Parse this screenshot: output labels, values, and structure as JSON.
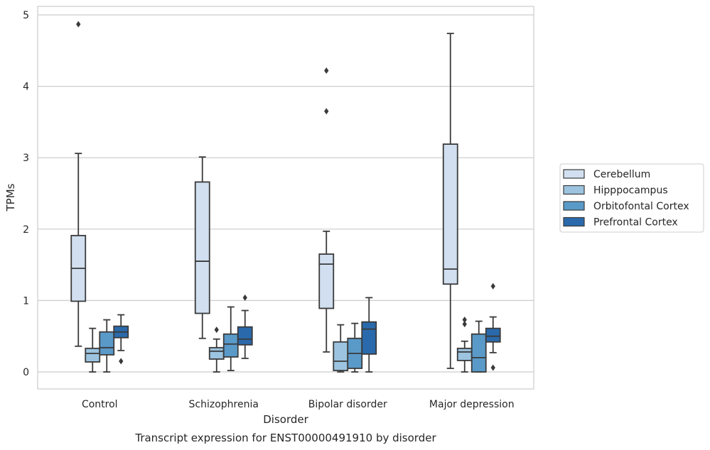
{
  "chart_data": {
    "type": "boxplot",
    "xlabel": "Disorder",
    "ylabel": "TPMs",
    "caption": "Transcript expression for ENST00000491910 by disorder",
    "ylim": [
      -0.23,
      5.12
    ],
    "yticks": [
      0,
      1,
      2,
      3,
      4,
      5
    ],
    "grid": true,
    "legend_position": "right",
    "categories": [
      "Control",
      "Schizophrenia",
      "Bipolar disorder",
      "Major depression"
    ],
    "series": [
      {
        "name": "Cerebellum",
        "color": "#d1dff0",
        "boxes": [
          {
            "q1": 0.99,
            "median": 1.45,
            "q3": 1.91,
            "whisker_low": 0.36,
            "whisker_high": 3.06,
            "outliers": [
              4.87
            ]
          },
          {
            "q1": 0.82,
            "median": 1.55,
            "q3": 2.66,
            "whisker_low": 0.47,
            "whisker_high": 3.01,
            "outliers": []
          },
          {
            "q1": 0.89,
            "median": 1.51,
            "q3": 1.65,
            "whisker_low": 0.28,
            "whisker_high": 1.97,
            "outliers": [
              3.65,
              4.22
            ]
          },
          {
            "q1": 1.23,
            "median": 1.44,
            "q3": 3.19,
            "whisker_low": 0.05,
            "whisker_high": 4.74,
            "outliers": []
          }
        ]
      },
      {
        "name": "Hipppocampus",
        "color": "#9cc4e0",
        "boxes": [
          {
            "q1": 0.14,
            "median": 0.26,
            "q3": 0.33,
            "whisker_low": 0.0,
            "whisker_high": 0.61,
            "outliers": []
          },
          {
            "q1": 0.18,
            "median": 0.29,
            "q3": 0.34,
            "whisker_low": 0.0,
            "whisker_high": 0.46,
            "outliers": [
              0.59
            ]
          },
          {
            "q1": 0.02,
            "median": 0.15,
            "q3": 0.42,
            "whisker_low": 0.0,
            "whisker_high": 0.66,
            "outliers": []
          },
          {
            "q1": 0.16,
            "median": 0.28,
            "q3": 0.33,
            "whisker_low": 0.0,
            "whisker_high": 0.43,
            "outliers": [
              0.67,
              0.73
            ]
          }
        ]
      },
      {
        "name": "Orbitofontal Cortex",
        "color": "#5a9ac9",
        "boxes": [
          {
            "q1": 0.24,
            "median": 0.34,
            "q3": 0.56,
            "whisker_low": 0.0,
            "whisker_high": 0.73,
            "outliers": []
          },
          {
            "q1": 0.21,
            "median": 0.39,
            "q3": 0.53,
            "whisker_low": 0.02,
            "whisker_high": 0.91,
            "outliers": []
          },
          {
            "q1": 0.05,
            "median": 0.26,
            "q3": 0.47,
            "whisker_low": 0.0,
            "whisker_high": 0.68,
            "outliers": []
          },
          {
            "q1": 0.0,
            "median": 0.2,
            "q3": 0.53,
            "whisker_low": 0.0,
            "whisker_high": 0.71,
            "outliers": []
          }
        ]
      },
      {
        "name": "Prefrontal Cortex",
        "color": "#2a6aac",
        "boxes": [
          {
            "q1": 0.48,
            "median": 0.56,
            "q3": 0.64,
            "whisker_low": 0.3,
            "whisker_high": 0.8,
            "outliers": [
              0.15
            ]
          },
          {
            "q1": 0.38,
            "median": 0.46,
            "q3": 0.63,
            "whisker_low": 0.19,
            "whisker_high": 0.86,
            "outliers": [
              1.04
            ]
          },
          {
            "q1": 0.25,
            "median": 0.6,
            "q3": 0.7,
            "whisker_low": 0.0,
            "whisker_high": 1.04,
            "outliers": []
          },
          {
            "q1": 0.42,
            "median": 0.5,
            "q3": 0.61,
            "whisker_low": 0.27,
            "whisker_high": 0.77,
            "outliers": [
              0.06,
              1.2
            ]
          }
        ]
      }
    ]
  }
}
